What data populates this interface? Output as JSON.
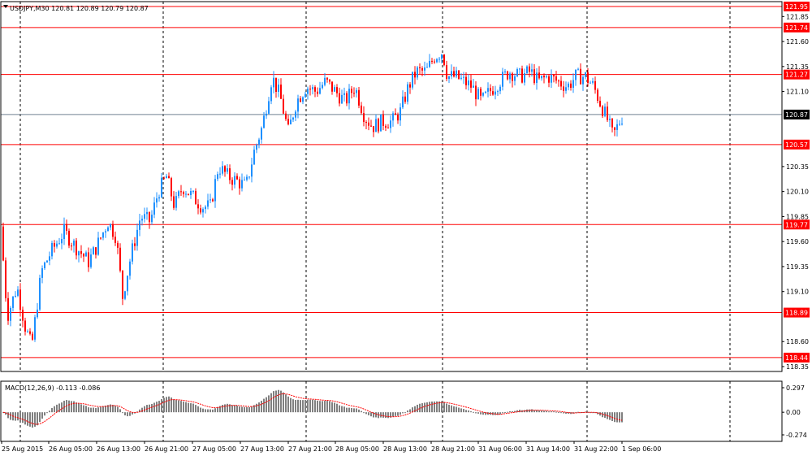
{
  "header": {
    "symbol_label": "USDJPY,M30  120.81 120.89 120.79 120.87",
    "indicator_label": "MACD(12,26,9) -0.113 -0.086"
  },
  "chart_data": {
    "type": "candlestick",
    "symbol": "USDJPY",
    "timeframe": "M30",
    "ohlc_current": {
      "open": 120.81,
      "high": 120.89,
      "low": 120.79,
      "close": 120.87
    },
    "price_ylim": [
      118.35,
      121.95
    ],
    "price_ticks": [
      121.85,
      121.6,
      121.35,
      121.1,
      120.35,
      120.1,
      119.85,
      119.6,
      119.35,
      119.1,
      118.6,
      118.35
    ],
    "horizontal_levels": [
      121.95,
      121.74,
      121.27,
      120.57,
      119.77,
      118.89,
      118.44
    ],
    "last_price": 120.87,
    "x_labels": [
      "25 Aug 2015",
      "26 Aug 05:00",
      "26 Aug 13:00",
      "26 Aug 21:00",
      "27 Aug 05:00",
      "27 Aug 13:00",
      "27 Aug 21:00",
      "28 Aug 05:00",
      "28 Aug 13:00",
      "28 Aug 21:00",
      "31 Aug 06:00",
      "31 Aug 14:00",
      "31 Aug 22:00",
      "1 Sep 06:00"
    ],
    "macd": {
      "params": "12,26,9",
      "main": -0.113,
      "signal": -0.086,
      "ticks": [
        0.297,
        0.0,
        -0.274
      ],
      "ylim": [
        -0.274,
        0.297
      ]
    },
    "colors": {
      "up": "#1e90ff",
      "down": "#ff0000",
      "level": "#ff0000",
      "last": "#000000",
      "histogram": "#808080",
      "signal": "#ff0000"
    }
  }
}
